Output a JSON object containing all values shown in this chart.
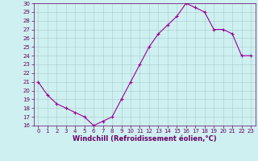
{
  "x": [
    0,
    1,
    2,
    3,
    4,
    5,
    6,
    7,
    8,
    9,
    10,
    11,
    12,
    13,
    14,
    15,
    16,
    17,
    18,
    19,
    20,
    21,
    22,
    23
  ],
  "y": [
    21,
    19.5,
    18.5,
    18,
    17.5,
    17,
    16,
    16.5,
    17,
    19,
    21,
    23,
    25,
    26.5,
    27.5,
    28.5,
    30,
    29.5,
    29,
    27,
    27,
    26.5,
    24,
    24
  ],
  "line_color": "#990099",
  "marker": "+",
  "marker_size": 3,
  "bg_color": "#cff0f0",
  "grid_color": "#aacccc",
  "xlabel": "Windchill (Refroidissement éolien,°C)",
  "xlabel_color": "#660066",
  "ylim": [
    16,
    30
  ],
  "yticks": [
    16,
    17,
    18,
    19,
    20,
    21,
    22,
    23,
    24,
    25,
    26,
    27,
    28,
    29,
    30
  ],
  "xlim": [
    -0.5,
    23.5
  ],
  "xticks": [
    0,
    1,
    2,
    3,
    4,
    5,
    6,
    7,
    8,
    9,
    10,
    11,
    12,
    13,
    14,
    15,
    16,
    17,
    18,
    19,
    20,
    21,
    22,
    23
  ],
  "tick_color": "#660066",
  "tick_fontsize": 5.0,
  "xlabel_fontsize": 6.0,
  "spine_color": "#660066"
}
